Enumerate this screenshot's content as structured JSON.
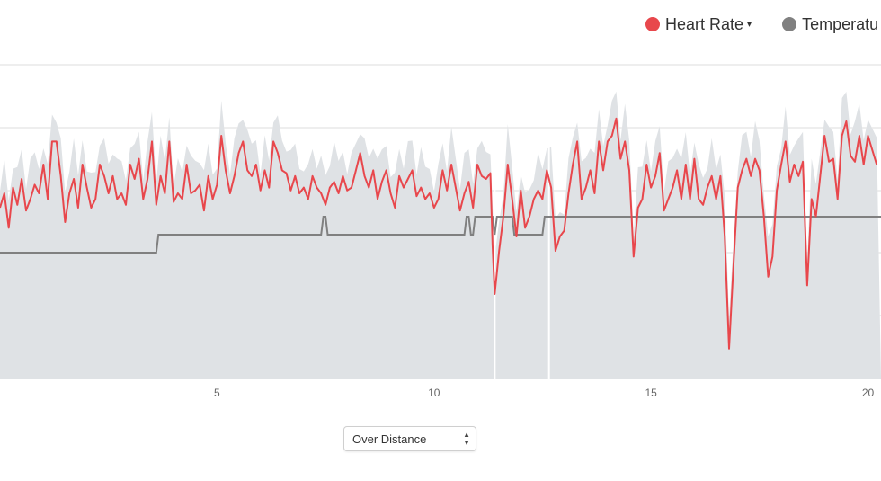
{
  "legend": {
    "heart_rate": {
      "label": "Heart Rate",
      "color": "#e8474c",
      "caret": "▾"
    },
    "temperature": {
      "label": "Temperatu",
      "color": "#808080"
    }
  },
  "control": {
    "selected": "Over Distance",
    "arrows": "▲▼"
  },
  "chart_data": {
    "type": "line",
    "xlim": [
      0,
      20.3
    ],
    "x_ticks": [
      5,
      10,
      15,
      20
    ],
    "grid": true,
    "series": [
      {
        "name": "Heart Rate",
        "color": "#e8474c",
        "points": [
          [
            0,
            125
          ],
          [
            0.1,
            130
          ],
          [
            0.2,
            118
          ],
          [
            0.3,
            132
          ],
          [
            0.4,
            126
          ],
          [
            0.5,
            135
          ],
          [
            0.6,
            124
          ],
          [
            0.7,
            128
          ],
          [
            0.8,
            133
          ],
          [
            0.9,
            130
          ],
          [
            1.0,
            140
          ],
          [
            1.1,
            128
          ],
          [
            1.2,
            148
          ],
          [
            1.3,
            148
          ],
          [
            1.4,
            136
          ],
          [
            1.5,
            120
          ],
          [
            1.6,
            130
          ],
          [
            1.7,
            135
          ],
          [
            1.8,
            125
          ],
          [
            1.9,
            140
          ],
          [
            2.0,
            132
          ],
          [
            2.1,
            125
          ],
          [
            2.2,
            128
          ],
          [
            2.3,
            140
          ],
          [
            2.4,
            136
          ],
          [
            2.5,
            130
          ],
          [
            2.6,
            136
          ],
          [
            2.7,
            128
          ],
          [
            2.8,
            130
          ],
          [
            2.9,
            126
          ],
          [
            3.0,
            140
          ],
          [
            3.1,
            135
          ],
          [
            3.2,
            142
          ],
          [
            3.3,
            128
          ],
          [
            3.4,
            135
          ],
          [
            3.5,
            148
          ],
          [
            3.6,
            126
          ],
          [
            3.7,
            136
          ],
          [
            3.8,
            130
          ],
          [
            3.9,
            148
          ],
          [
            4.0,
            127
          ],
          [
            4.1,
            130
          ],
          [
            4.2,
            128
          ],
          [
            4.3,
            140
          ],
          [
            4.4,
            130
          ],
          [
            4.5,
            131
          ],
          [
            4.6,
            133
          ],
          [
            4.7,
            124
          ],
          [
            4.8,
            136
          ],
          [
            4.9,
            128
          ],
          [
            5.0,
            133
          ],
          [
            5.1,
            150
          ],
          [
            5.2,
            138
          ],
          [
            5.3,
            130
          ],
          [
            5.4,
            136
          ],
          [
            5.5,
            144
          ],
          [
            5.6,
            148
          ],
          [
            5.7,
            138
          ],
          [
            5.8,
            136
          ],
          [
            5.9,
            140
          ],
          [
            6.0,
            131
          ],
          [
            6.1,
            138
          ],
          [
            6.2,
            132
          ],
          [
            6.3,
            148
          ],
          [
            6.4,
            144
          ],
          [
            6.5,
            138
          ],
          [
            6.6,
            137
          ],
          [
            6.7,
            131
          ],
          [
            6.8,
            136
          ],
          [
            6.9,
            130
          ],
          [
            7.0,
            132
          ],
          [
            7.1,
            128
          ],
          [
            7.2,
            136
          ],
          [
            7.3,
            132
          ],
          [
            7.4,
            130
          ],
          [
            7.5,
            126
          ],
          [
            7.6,
            132
          ],
          [
            7.7,
            134
          ],
          [
            7.8,
            130
          ],
          [
            7.9,
            136
          ],
          [
            8.0,
            131
          ],
          [
            8.1,
            132
          ],
          [
            8.2,
            138
          ],
          [
            8.3,
            144
          ],
          [
            8.4,
            136
          ],
          [
            8.5,
            132
          ],
          [
            8.6,
            138
          ],
          [
            8.7,
            128
          ],
          [
            8.8,
            134
          ],
          [
            8.9,
            138
          ],
          [
            9.0,
            130
          ],
          [
            9.1,
            125
          ],
          [
            9.2,
            136
          ],
          [
            9.3,
            132
          ],
          [
            9.4,
            135
          ],
          [
            9.5,
            138
          ],
          [
            9.6,
            129
          ],
          [
            9.7,
            132
          ],
          [
            9.8,
            128
          ],
          [
            9.9,
            130
          ],
          [
            10.0,
            125
          ],
          [
            10.1,
            128
          ],
          [
            10.2,
            138
          ],
          [
            10.3,
            131
          ],
          [
            10.4,
            140
          ],
          [
            10.5,
            132
          ],
          [
            10.6,
            124
          ],
          [
            10.7,
            130
          ],
          [
            10.8,
            134
          ],
          [
            10.9,
            125
          ],
          [
            11.0,
            140
          ],
          [
            11.1,
            136
          ],
          [
            11.2,
            135
          ],
          [
            11.3,
            137
          ],
          [
            11.35,
            112
          ],
          [
            11.4,
            95
          ],
          [
            11.5,
            110
          ],
          [
            11.6,
            122
          ],
          [
            11.7,
            140
          ],
          [
            11.8,
            128
          ],
          [
            11.9,
            115
          ],
          [
            12.0,
            131
          ],
          [
            12.1,
            118
          ],
          [
            12.2,
            122
          ],
          [
            12.3,
            128
          ],
          [
            12.4,
            131
          ],
          [
            12.5,
            128
          ],
          [
            12.6,
            138
          ],
          [
            12.7,
            132
          ],
          [
            12.8,
            110
          ],
          [
            12.9,
            115
          ],
          [
            13.0,
            117
          ],
          [
            13.1,
            130
          ],
          [
            13.2,
            140
          ],
          [
            13.3,
            148
          ],
          [
            13.4,
            128
          ],
          [
            13.5,
            132
          ],
          [
            13.6,
            138
          ],
          [
            13.7,
            130
          ],
          [
            13.8,
            148
          ],
          [
            13.9,
            138
          ],
          [
            14.0,
            148
          ],
          [
            14.1,
            150
          ],
          [
            14.2,
            156
          ],
          [
            14.3,
            142
          ],
          [
            14.4,
            148
          ],
          [
            14.5,
            138
          ],
          [
            14.6,
            108
          ],
          [
            14.7,
            125
          ],
          [
            14.8,
            128
          ],
          [
            14.9,
            140
          ],
          [
            15.0,
            132
          ],
          [
            15.1,
            136
          ],
          [
            15.2,
            144
          ],
          [
            15.3,
            124
          ],
          [
            15.4,
            128
          ],
          [
            15.5,
            132
          ],
          [
            15.6,
            138
          ],
          [
            15.7,
            128
          ],
          [
            15.8,
            140
          ],
          [
            15.9,
            128
          ],
          [
            16.0,
            142
          ],
          [
            16.1,
            128
          ],
          [
            16.2,
            126
          ],
          [
            16.3,
            132
          ],
          [
            16.4,
            136
          ],
          [
            16.5,
            128
          ],
          [
            16.6,
            136
          ],
          [
            16.7,
            115
          ],
          [
            16.8,
            76
          ],
          [
            16.9,
            105
          ],
          [
            17.0,
            132
          ],
          [
            17.1,
            138
          ],
          [
            17.2,
            142
          ],
          [
            17.3,
            136
          ],
          [
            17.4,
            142
          ],
          [
            17.5,
            138
          ],
          [
            17.6,
            122
          ],
          [
            17.7,
            101
          ],
          [
            17.8,
            108
          ],
          [
            17.9,
            131
          ],
          [
            18.0,
            140
          ],
          [
            18.1,
            148
          ],
          [
            18.2,
            134
          ],
          [
            18.3,
            140
          ],
          [
            18.4,
            136
          ],
          [
            18.5,
            141
          ],
          [
            18.6,
            98
          ],
          [
            18.7,
            128
          ],
          [
            18.8,
            122
          ],
          [
            18.9,
            136
          ],
          [
            19.0,
            150
          ],
          [
            19.1,
            141
          ],
          [
            19.2,
            142
          ],
          [
            19.3,
            128
          ],
          [
            19.4,
            150
          ],
          [
            19.5,
            155
          ],
          [
            19.6,
            143
          ],
          [
            19.7,
            141
          ],
          [
            19.8,
            150
          ],
          [
            19.9,
            140
          ],
          [
            20.0,
            150
          ],
          [
            20.2,
            140
          ]
        ]
      },
      {
        "name": "Temperatu",
        "color": "#808080",
        "points": [
          [
            0,
            29
          ],
          [
            3.6,
            29
          ],
          [
            3.65,
            30
          ],
          [
            7.4,
            30
          ],
          [
            7.45,
            31
          ],
          [
            7.5,
            31
          ],
          [
            7.55,
            30
          ],
          [
            10.7,
            30
          ],
          [
            10.75,
            31
          ],
          [
            10.8,
            31
          ],
          [
            10.85,
            30
          ],
          [
            10.9,
            30
          ],
          [
            10.95,
            31
          ],
          [
            11.35,
            31
          ],
          [
            11.4,
            30
          ],
          [
            11.45,
            31
          ],
          [
            11.8,
            31
          ],
          [
            11.85,
            30
          ],
          [
            12.5,
            30
          ],
          [
            12.55,
            31
          ],
          [
            20.3,
            31
          ]
        ]
      }
    ]
  }
}
